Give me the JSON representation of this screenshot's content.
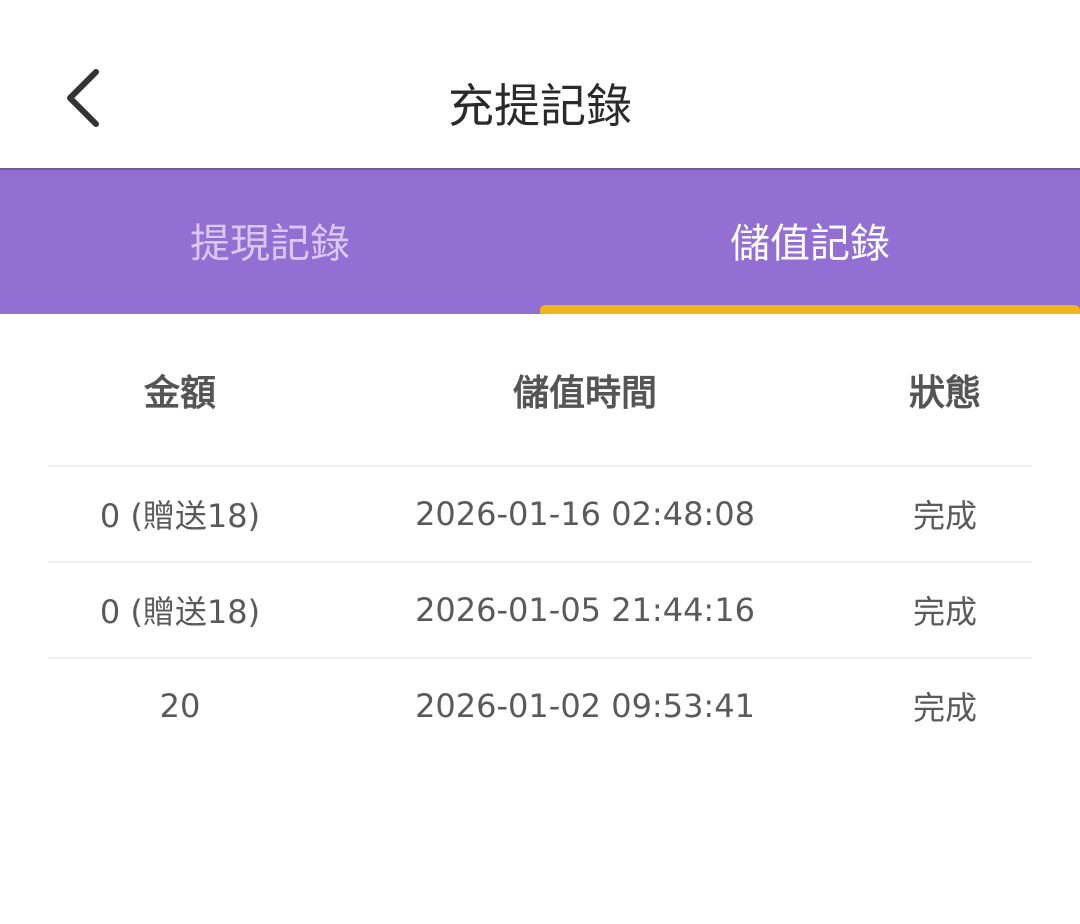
{
  "header": {
    "title": "充提記錄",
    "back_icon": "chevron-left-icon"
  },
  "tabs": [
    {
      "label": "提現記錄",
      "active": false
    },
    {
      "label": "儲值記錄",
      "active": true
    }
  ],
  "colors": {
    "tab_bar": "#936fd3",
    "indicator": "#f0b41c"
  },
  "table": {
    "columns": [
      "金額",
      "儲值時間",
      "狀態"
    ],
    "rows": [
      [
        "0 (贈送18)",
        "2026-01-16 02:48:08",
        "完成"
      ],
      [
        "0 (贈送18)",
        "2026-01-05 21:44:16",
        "完成"
      ],
      [
        "20",
        "2026-01-02 09:53:41",
        "完成"
      ]
    ]
  }
}
